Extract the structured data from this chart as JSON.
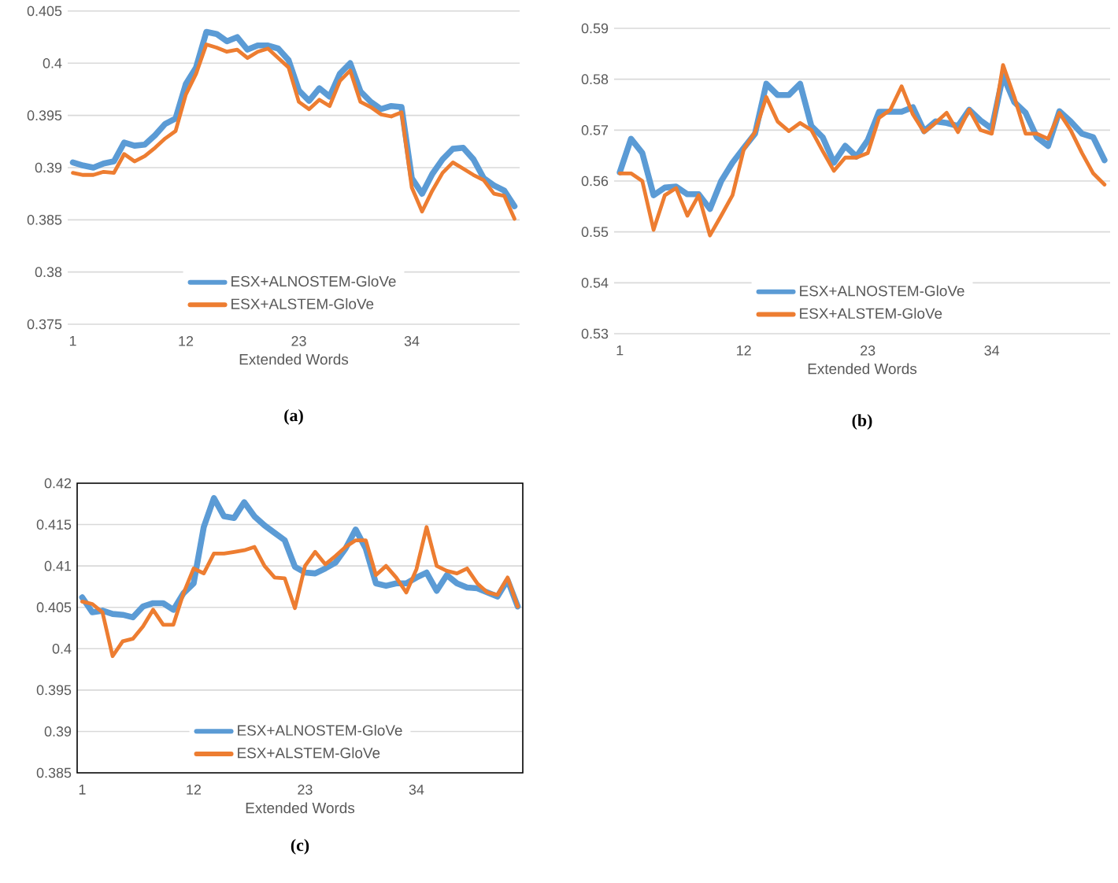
{
  "chart_data": [
    {
      "type": "line",
      "xlabel": "Extended Words",
      "annotations": [
        "(a)"
      ],
      "x": [
        1,
        2,
        3,
        4,
        5,
        6,
        7,
        8,
        9,
        10,
        11,
        12,
        13,
        14,
        15,
        16,
        17,
        18,
        19,
        20,
        21,
        22,
        23,
        24,
        25,
        26,
        27,
        28,
        29,
        30,
        31,
        32,
        33,
        34,
        35,
        36,
        37,
        38,
        39,
        40,
        41,
        42,
        43,
        44
      ],
      "xlim": [
        0.5,
        44.5
      ],
      "xticks": [
        1,
        12,
        23,
        34
      ],
      "ylim": [
        0.375,
        0.405
      ],
      "yticks": [
        0.375,
        0.38,
        0.385,
        0.39,
        0.395,
        0.4,
        0.405
      ],
      "grid": "y",
      "legend": "bottom",
      "marker": "none",
      "line_style": "solid",
      "series": [
        {
          "name": "ESX+ALNOSTEM-GloVe",
          "color": "#5b9bd5",
          "values": [
            0.3905,
            0.3902,
            0.39,
            0.3904,
            0.3906,
            0.3924,
            0.3921,
            0.3922,
            0.3931,
            0.3942,
            0.3947,
            0.398,
            0.3996,
            0.403,
            0.4028,
            0.4021,
            0.4025,
            0.4013,
            0.4017,
            0.4017,
            0.4014,
            0.4003,
            0.3974,
            0.3964,
            0.3976,
            0.3968,
            0.399,
            0.4,
            0.3973,
            0.3963,
            0.3956,
            0.3959,
            0.3958,
            0.389,
            0.3875,
            0.3894,
            0.3908,
            0.3918,
            0.3919,
            0.3908,
            0.389,
            0.3883,
            0.3878,
            0.3863
          ]
        },
        {
          "name": "ESX+ALSTEM-GloVe",
          "color": "#ed7d31",
          "values": [
            0.3895,
            0.3893,
            0.3893,
            0.3896,
            0.3895,
            0.3913,
            0.3906,
            0.3911,
            0.3919,
            0.3928,
            0.3935,
            0.397,
            0.399,
            0.4018,
            0.4015,
            0.4011,
            0.4013,
            0.4005,
            0.4011,
            0.4014,
            0.4005,
            0.3996,
            0.3963,
            0.3956,
            0.3965,
            0.3959,
            0.3983,
            0.3993,
            0.3963,
            0.3958,
            0.3951,
            0.3949,
            0.3953,
            0.3881,
            0.3858,
            0.3878,
            0.3895,
            0.3905,
            0.3899,
            0.3893,
            0.3888,
            0.3875,
            0.3873,
            0.3851
          ]
        }
      ]
    },
    {
      "type": "line",
      "xlabel": "Extended Words",
      "annotations": [
        "(b)"
      ],
      "x": [
        1,
        2,
        3,
        4,
        5,
        6,
        7,
        8,
        9,
        10,
        11,
        12,
        13,
        14,
        15,
        16,
        17,
        18,
        19,
        20,
        21,
        22,
        23,
        24,
        25,
        26,
        27,
        28,
        29,
        30,
        31,
        32,
        33,
        34,
        35,
        36,
        37,
        38,
        39,
        40,
        41,
        42,
        43,
        44
      ],
      "xlim": [
        0.5,
        44.5
      ],
      "xticks": [
        1,
        12,
        23,
        34
      ],
      "ylim": [
        0.53,
        0.59
      ],
      "yticks": [
        0.53,
        0.54,
        0.55,
        0.56,
        0.57,
        0.58,
        0.59
      ],
      "grid": "y",
      "legend": "bottom",
      "marker": "none",
      "line_style": "solid",
      "series": [
        {
          "name": "ESX+ALNOSTEM-GloVe",
          "color": "#5b9bd5",
          "values": [
            0.5617,
            0.5683,
            0.5655,
            0.5572,
            0.5587,
            0.5589,
            0.5574,
            0.5574,
            0.5545,
            0.56,
            0.5636,
            0.5665,
            0.5693,
            0.5791,
            0.5769,
            0.5769,
            0.5791,
            0.5708,
            0.5686,
            0.5636,
            0.5669,
            0.5648,
            0.568,
            0.5736,
            0.5736,
            0.5736,
            0.5745,
            0.5698,
            0.5717,
            0.5714,
            0.5708,
            0.574,
            0.5719,
            0.5703,
            0.5807,
            0.5755,
            0.5734,
            0.5686,
            0.5669,
            0.5737,
            0.5717,
            0.5693,
            0.5686,
            0.5641
          ]
        },
        {
          "name": "ESX+ALSTEM-GloVe",
          "color": "#ed7d31",
          "values": [
            0.5615,
            0.5615,
            0.56,
            0.5504,
            0.5572,
            0.5586,
            0.5532,
            0.5572,
            0.5493,
            0.5532,
            0.5572,
            0.5662,
            0.5696,
            0.5765,
            0.5717,
            0.5698,
            0.5714,
            0.57,
            0.5659,
            0.562,
            0.5646,
            0.5646,
            0.5655,
            0.5724,
            0.574,
            0.5786,
            0.5731,
            0.5696,
            0.5714,
            0.5734,
            0.5696,
            0.574,
            0.57,
            0.5693,
            0.5828,
            0.5765,
            0.5693,
            0.5693,
            0.5683,
            0.5734,
            0.57,
            0.5655,
            0.5615,
            0.5593
          ]
        }
      ]
    },
    {
      "type": "line",
      "xlabel": "Extended Words",
      "annotations": [
        "(c)"
      ],
      "x": [
        1,
        2,
        3,
        4,
        5,
        6,
        7,
        8,
        9,
        10,
        11,
        12,
        13,
        14,
        15,
        16,
        17,
        18,
        19,
        20,
        21,
        22,
        23,
        24,
        25,
        26,
        27,
        28,
        29,
        30,
        31,
        32,
        33,
        34,
        35,
        36,
        37,
        38,
        39,
        40,
        41,
        42,
        43,
        44
      ],
      "xlim": [
        0.5,
        44.5
      ],
      "xticks": [
        1,
        12,
        23,
        34
      ],
      "ylim": [
        0.385,
        0.42
      ],
      "yticks": [
        0.385,
        0.39,
        0.395,
        0.4,
        0.405,
        0.41,
        0.415,
        0.42
      ],
      "grid": "y",
      "legend": "bottom",
      "marker": "none",
      "line_style": "solid",
      "series": [
        {
          "name": "ESX+ALNOSTEM-GloVe",
          "color": "#5b9bd5",
          "values": [
            0.4062,
            0.4044,
            0.4046,
            0.4042,
            0.4041,
            0.4038,
            0.4051,
            0.4055,
            0.4055,
            0.4047,
            0.4067,
            0.4079,
            0.4147,
            0.4182,
            0.416,
            0.4158,
            0.4177,
            0.416,
            0.4149,
            0.414,
            0.4131,
            0.4099,
            0.4092,
            0.4091,
            0.4097,
            0.4104,
            0.4121,
            0.4144,
            0.4121,
            0.4079,
            0.4076,
            0.4079,
            0.4079,
            0.4086,
            0.4092,
            0.407,
            0.4089,
            0.4079,
            0.4074,
            0.4073,
            0.4068,
            0.4063,
            0.4083,
            0.4051
          ]
        },
        {
          "name": "ESX+ALSTEM-GloVe",
          "color": "#ed7d31",
          "values": [
            0.4057,
            0.4054,
            0.4044,
            0.3991,
            0.4009,
            0.4012,
            0.4027,
            0.4047,
            0.4029,
            0.4029,
            0.4067,
            0.4097,
            0.4091,
            0.4115,
            0.4115,
            0.4117,
            0.4119,
            0.4123,
            0.41,
            0.4086,
            0.4085,
            0.4049,
            0.41,
            0.4117,
            0.4102,
            0.4112,
            0.4123,
            0.4131,
            0.4131,
            0.4089,
            0.41,
            0.4086,
            0.4068,
            0.4096,
            0.4147,
            0.41,
            0.4094,
            0.4091,
            0.4097,
            0.4079,
            0.4068,
            0.4065,
            0.4086,
            0.4051
          ]
        }
      ]
    }
  ]
}
